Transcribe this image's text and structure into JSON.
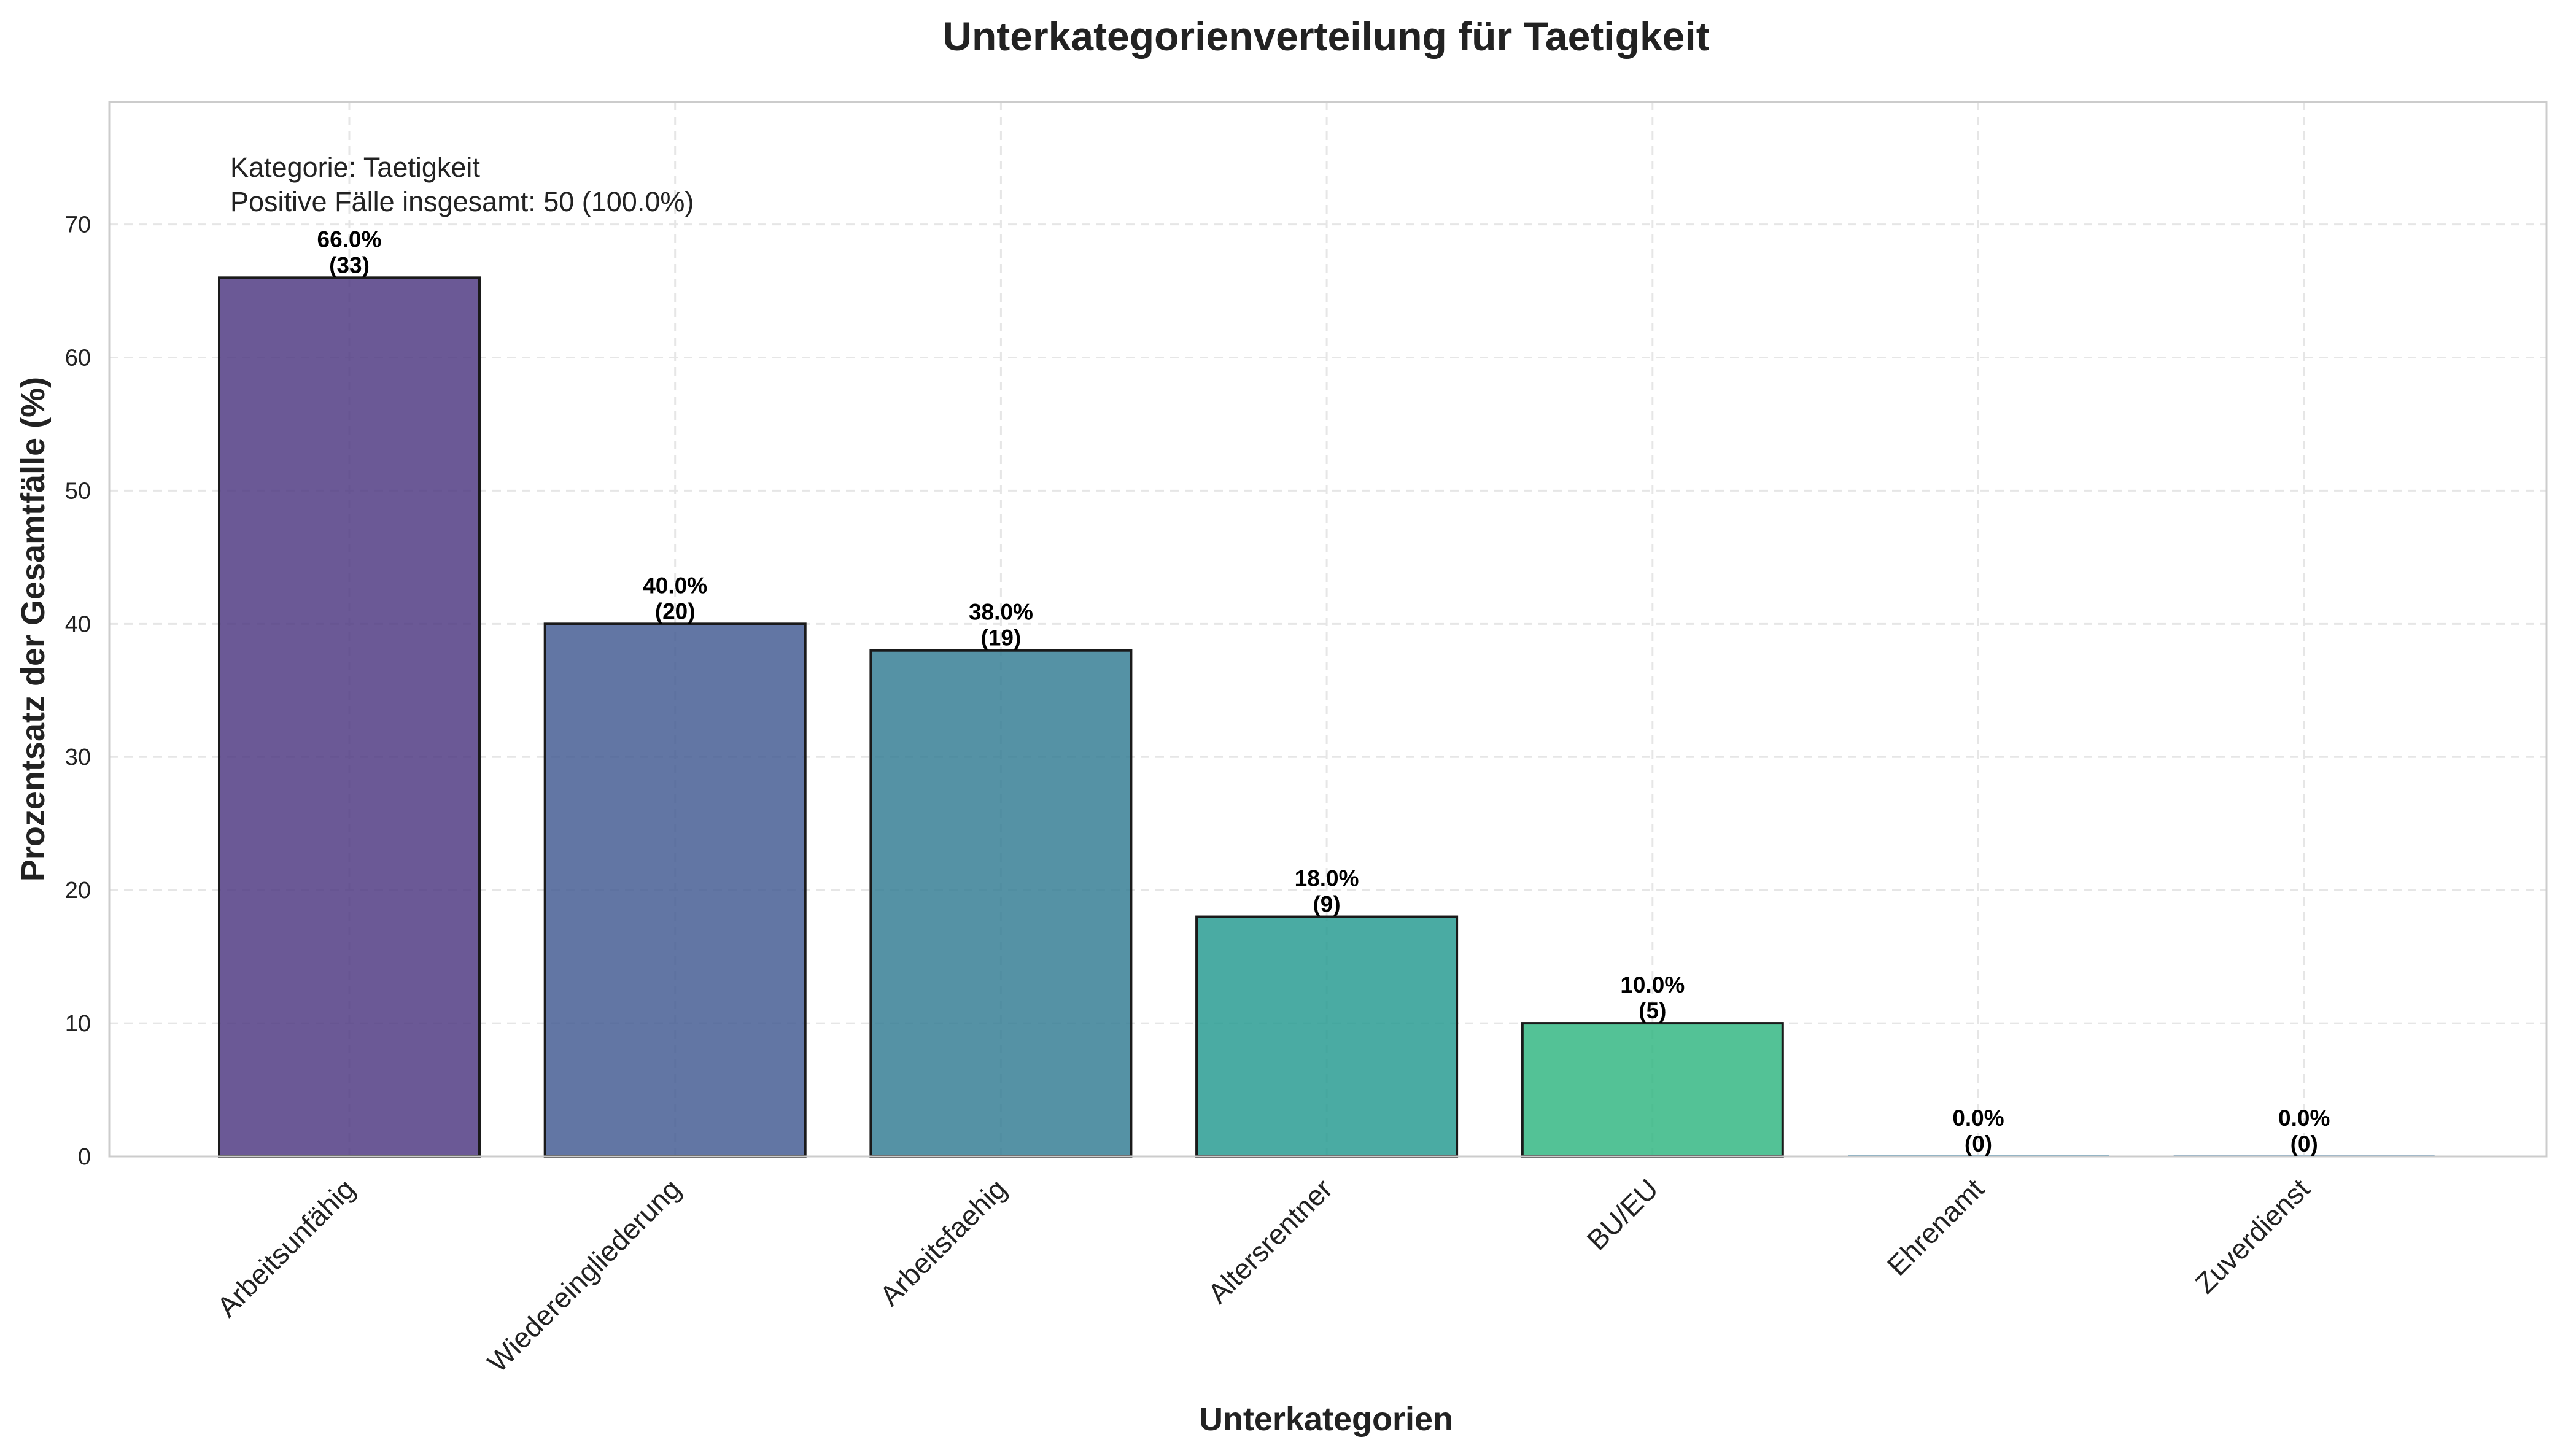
{
  "chart_data": {
    "type": "bar",
    "title": "Unterkategorienverteilung für Taetigkeit",
    "xlabel": "Unterkategorien",
    "ylabel": "Prozentsatz der Gesamtfälle (%)",
    "ylim": [
      0,
      79.2
    ],
    "yticks": [
      0,
      10,
      20,
      30,
      40,
      50,
      60,
      70
    ],
    "grid": true,
    "categories": [
      "Arbeitsunfähig",
      "Wiedereingliederung",
      "Arbeitsfaehig",
      "Altersrentner",
      "BU/EU",
      "Ehrenamt",
      "Zuverdienst"
    ],
    "values": [
      66.0,
      40.0,
      38.0,
      18.0,
      10.0,
      0.0,
      0.0
    ],
    "counts": [
      33,
      20,
      19,
      9,
      5,
      0,
      0
    ],
    "value_labels": [
      "66.0%",
      "40.0%",
      "38.0%",
      "18.0%",
      "10.0%",
      "0.0%",
      "0.0%"
    ],
    "count_labels": [
      "(33)",
      "(20)",
      "(19)",
      "(9)",
      "(5)",
      "(0)",
      "(0)"
    ],
    "colors": [
      "#4b347f",
      "#405890",
      "#2f7a91",
      "#22998f",
      "#2db57f",
      "#5e9ebe",
      "#7aa6c6"
    ],
    "annotation": {
      "line1": "Kategorie: Taetigkeit",
      "line2": "Positive Fälle insgesamt: 50 (100.0%)"
    }
  }
}
